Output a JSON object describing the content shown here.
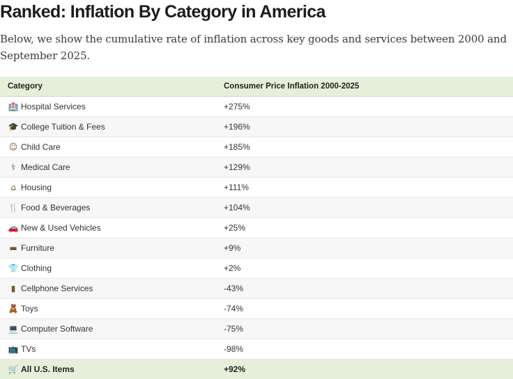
{
  "header": {
    "title": "Ranked: Inflation By Category in America",
    "subtitle": "Below, we show the cumulative rate of inflation across key goods and services between 2000 and September 2025."
  },
  "table": {
    "columns": [
      "Category",
      "Consumer Price Inflation 2000-2025"
    ],
    "rows": [
      {
        "icon": "hospital-icon",
        "glyph": "🏥",
        "label": "Hospital Services",
        "value": "+275%"
      },
      {
        "icon": "graduation-cap-icon",
        "glyph": "🎓",
        "label": "College Tuition & Fees",
        "value": "+196%"
      },
      {
        "icon": "child-face-icon",
        "glyph": "☺",
        "label": "Child Care",
        "value": "+185%"
      },
      {
        "icon": "stethoscope-icon",
        "glyph": "⚕",
        "label": "Medical Care",
        "value": "+129%"
      },
      {
        "icon": "house-icon",
        "glyph": "⌂",
        "label": "Housing",
        "value": "+111%"
      },
      {
        "icon": "fork-knife-icon",
        "glyph": "🍴",
        "label": "Food & Beverages",
        "value": "+104%"
      },
      {
        "icon": "car-icon",
        "glyph": "🚗",
        "label": "New & Used Vehicles",
        "value": "+25%"
      },
      {
        "icon": "sofa-icon",
        "glyph": "▬",
        "label": "Furniture",
        "value": "+9%"
      },
      {
        "icon": "shirt-icon",
        "glyph": "👕",
        "label": "Clothing",
        "value": "+2%"
      },
      {
        "icon": "mobile-phone-icon",
        "glyph": "▮",
        "label": "Cellphone Services",
        "value": "-43%"
      },
      {
        "icon": "teddy-bear-icon",
        "glyph": "🧸",
        "label": "Toys",
        "value": "-74%"
      },
      {
        "icon": "laptop-icon",
        "glyph": "💻",
        "label": "Computer Software",
        "value": "-75%"
      },
      {
        "icon": "television-icon",
        "glyph": "📺",
        "label": "TVs",
        "value": "-98%"
      }
    ],
    "total": {
      "icon": "shopping-cart-icon",
      "glyph": "🛒",
      "label": "All U.S. Items",
      "value": "+92%"
    }
  },
  "colors": {
    "header_band": "#e6efd9",
    "striped_row": "#f7f7f7",
    "text": "#222222"
  }
}
